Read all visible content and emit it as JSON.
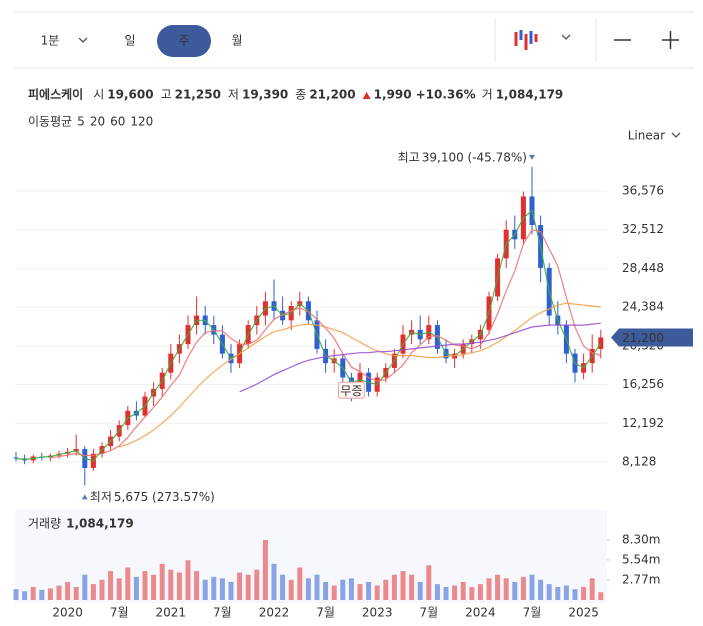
{
  "toolbar": {
    "intervals": [
      "1분",
      "일",
      "주",
      "월"
    ],
    "selected": 2
  },
  "info": {
    "name": "피에스케이",
    "fields": [
      {
        "label": "시",
        "value": "19,600"
      },
      {
        "label": "고",
        "value": "21,250"
      },
      {
        "label": "저",
        "value": "19,390"
      },
      {
        "label": "종",
        "value": "21,200"
      }
    ],
    "change": "1,990",
    "change_pct": "+10.36%",
    "volume_label": "거",
    "volume": "1,084,179"
  },
  "ma_legend": {
    "label": "이동평균"
  },
  "scale_button": "Linear",
  "chart_data": [
    {
      "type": "candlestick",
      "categories": [
        null,
        null,
        null,
        null,
        null,
        null,
        "2020",
        null,
        null,
        null,
        null,
        null,
        "7월",
        null,
        null,
        null,
        null,
        null,
        "2021",
        null,
        null,
        null,
        null,
        null,
        "7월",
        null,
        null,
        null,
        null,
        null,
        "2022",
        null,
        null,
        null,
        null,
        null,
        "7월",
        null,
        null,
        null,
        null,
        null,
        "2023",
        null,
        null,
        null,
        null,
        null,
        "7월",
        null,
        null,
        null,
        null,
        null,
        "2024",
        null,
        null,
        null,
        null,
        null,
        "7월",
        null,
        null,
        null,
        null,
        null,
        "2025",
        null,
        null
      ],
      "open": [
        8600,
        8500,
        8300,
        8700,
        8600,
        8800,
        9000,
        9200,
        9500,
        7500,
        9000,
        9800,
        10800,
        12000,
        13500,
        13000,
        15000,
        15800,
        17500,
        19500,
        20500,
        22500,
        23500,
        22500,
        21500,
        19500,
        18500,
        20500,
        22500,
        23500,
        25000,
        24000,
        23000,
        24500,
        25000,
        23000,
        20000,
        18500,
        19000,
        17000,
        16000,
        17500,
        15500,
        17000,
        18000,
        19500,
        21500,
        22000,
        21000,
        22500,
        20000,
        19000,
        19500,
        20500,
        21000,
        22000,
        25500,
        29500,
        32500,
        31500,
        36000,
        33000,
        28500,
        23500,
        22500,
        19500,
        17500,
        18500,
        20000
      ],
      "high": [
        9200,
        8900,
        8900,
        9100,
        9000,
        9300,
        9600,
        11000,
        9800,
        9500,
        10200,
        11500,
        12500,
        14000,
        14500,
        15500,
        16500,
        18000,
        20500,
        21500,
        23500,
        25500,
        24500,
        23500,
        22500,
        20500,
        21000,
        23000,
        24500,
        26000,
        27300,
        25500,
        25000,
        26000,
        25500,
        24000,
        21000,
        20000,
        19500,
        17500,
        18500,
        18000,
        17500,
        18500,
        20000,
        22500,
        23000,
        23500,
        23500,
        23000,
        21000,
        20000,
        21000,
        21500,
        22500,
        26000,
        30000,
        33500,
        34000,
        36500,
        39100,
        34000,
        29000,
        25000,
        23000,
        20000,
        19500,
        21500,
        22000
      ],
      "low": [
        8200,
        7900,
        8000,
        8300,
        8200,
        8500,
        8600,
        8800,
        5675,
        7200,
        8600,
        9400,
        10300,
        11500,
        12500,
        12800,
        14000,
        15000,
        16800,
        18500,
        20000,
        21500,
        21500,
        20500,
        19000,
        17500,
        18000,
        20000,
        21500,
        22500,
        23000,
        22500,
        22000,
        23500,
        22500,
        19500,
        17500,
        17500,
        16500,
        14500,
        15500,
        15000,
        15000,
        16500,
        17500,
        19000,
        20500,
        20500,
        20500,
        19500,
        18500,
        18000,
        19000,
        19500,
        20000,
        21500,
        25000,
        28500,
        30500,
        31000,
        32000,
        27000,
        22500,
        21500,
        18500,
        16500,
        16800,
        17500,
        19000
      ],
      "close": [
        8500,
        8300,
        8700,
        8600,
        8800,
        9000,
        9200,
        9500,
        7500,
        9000,
        9800,
        10800,
        12000,
        13500,
        13000,
        15000,
        15800,
        17500,
        19500,
        20500,
        22500,
        23500,
        22500,
        21500,
        19500,
        18500,
        20500,
        22500,
        23500,
        25000,
        24000,
        23000,
        24500,
        25000,
        23000,
        20000,
        18500,
        19000,
        17000,
        16000,
        17500,
        15500,
        17000,
        18000,
        19500,
        21500,
        22000,
        21000,
        22500,
        20000,
        19000,
        19500,
        20500,
        21000,
        22000,
        25500,
        29500,
        32500,
        31500,
        36000,
        33000,
        28500,
        23500,
        22500,
        19500,
        17500,
        18500,
        20000,
        21200
      ],
      "up_color": "#e0302f",
      "down_color": "#2f5fd0",
      "ylim": [
        4140,
        41400
      ],
      "yticks": [
        {
          "value": 8128,
          "label": "8,128"
        },
        {
          "value": 12192,
          "label": "12,192"
        },
        {
          "value": 16256,
          "label": "16,256"
        },
        {
          "value": 20320,
          "label": "20,320"
        },
        {
          "value": 24384,
          "label": "24,384"
        },
        {
          "value": 28448,
          "label": "28,448"
        },
        {
          "value": 32512,
          "label": "32,512"
        },
        {
          "value": 36576,
          "label": "36,576"
        }
      ],
      "grid": true,
      "series": [
        {
          "name": "5",
          "color": "#3fae3f",
          "values": [
            8500,
            8400,
            8500,
            8650,
            8700,
            8900,
            9100,
            9350,
            8500,
            8250,
            9400,
            10300,
            11400,
            12750,
            13250,
            14000,
            15400,
            16650,
            18500,
            20000,
            21500,
            23000,
            23000,
            22000,
            20500,
            19000,
            19500,
            21500,
            23000,
            24250,
            24500,
            23500,
            23750,
            24750,
            24000,
            21500,
            19250,
            18750,
            18000,
            16500,
            16750,
            16500,
            16250,
            17500,
            18750,
            20500,
            21750,
            21500,
            21750,
            21250,
            19500,
            19250,
            20000,
            20750,
            21500,
            23750,
            27500,
            31000,
            32000,
            33750,
            34500,
            30750,
            26000,
            23000,
            21000,
            18500,
            18000,
            19250,
            20600
          ]
        },
        {
          "name": "20",
          "color": "#f07070",
          "values": [
            null,
            null,
            null,
            null,
            8580,
            8680,
            8860,
            9020,
            8800,
            8840,
            9000,
            9320,
            9820,
            10720,
            11820,
            12860,
            13860,
            14960,
            16160,
            17260,
            19160,
            20700,
            21700,
            21900,
            21900,
            21100,
            20500,
            20500,
            20900,
            22000,
            23100,
            23600,
            24000,
            24300,
            23900,
            23100,
            22200,
            21100,
            19500,
            18100,
            17600,
            17000,
            16600,
            16800,
            17500,
            18300,
            19600,
            20400,
            21300,
            21400,
            20900,
            20400,
            20300,
            20000,
            20400,
            21700,
            23700,
            26100,
            28200,
            31000,
            32500,
            32300,
            30500,
            28700,
            25400,
            22300,
            20300,
            19600,
            19300
          ]
        },
        {
          "name": "60",
          "color": "#f5a04a",
          "values": [
            null,
            null,
            null,
            null,
            null,
            null,
            null,
            null,
            null,
            null,
            null,
            null,
            9700,
            10000,
            10400,
            10900,
            11500,
            12200,
            13000,
            13900,
            14900,
            15900,
            16800,
            17600,
            18300,
            18900,
            19500,
            20100,
            20700,
            21300,
            21800,
            22000,
            22300,
            22500,
            22600,
            22500,
            22300,
            22000,
            21700,
            21200,
            20700,
            20200,
            19800,
            19500,
            19300,
            19300,
            19300,
            19200,
            19100,
            19100,
            19200,
            19300,
            19400,
            19600,
            19800,
            20200,
            20700,
            21300,
            21900,
            22600,
            23300,
            23800,
            24200,
            24600,
            24800,
            24700,
            24600,
            24500,
            24400
          ]
        },
        {
          "name": "120",
          "color": "#9b4fd6",
          "values": [
            null,
            null,
            null,
            null,
            null,
            null,
            null,
            null,
            null,
            null,
            null,
            null,
            null,
            null,
            null,
            null,
            null,
            null,
            null,
            null,
            null,
            null,
            null,
            null,
            null,
            null,
            15500,
            15900,
            16300,
            16800,
            17300,
            17700,
            18100,
            18500,
            18800,
            19000,
            19200,
            19300,
            19400,
            19500,
            19600,
            19600,
            19700,
            19700,
            19800,
            19900,
            20000,
            20100,
            20200,
            20300,
            20400,
            20500,
            20500,
            20600,
            20700,
            20900,
            21100,
            21400,
            21700,
            22000,
            22300,
            22400,
            22500,
            22500,
            22500,
            22500,
            22500,
            22600,
            22700
          ]
        }
      ],
      "high_annotation": {
        "label": "최고",
        "value_label": "39,100 (-45.78%)"
      },
      "low_annotation": {
        "label": "최저",
        "value_label": "5,675 (273.57%)"
      },
      "events": [
        null,
        null,
        null,
        null,
        null,
        null,
        null,
        null,
        null,
        null,
        null,
        null,
        null,
        null,
        null,
        null,
        null,
        null,
        null,
        null,
        null,
        null,
        null,
        null,
        null,
        null,
        null,
        null,
        null,
        null,
        null,
        null,
        null,
        null,
        null,
        null,
        null,
        null,
        null,
        "무증",
        null,
        null,
        null,
        null,
        null,
        null,
        null,
        null,
        null,
        null,
        null,
        null,
        null,
        null,
        null,
        null,
        null,
        null,
        null,
        null,
        null,
        null,
        null,
        null,
        null,
        null,
        null,
        null,
        null
      ],
      "last_label": "21,200"
    },
    {
      "type": "bar",
      "title": "거래량",
      "value_label": "1,084,179",
      "values": [
        1500000,
        1200000,
        1800000,
        1400000,
        1600000,
        2000000,
        2500000,
        1800000,
        3500000,
        2200000,
        2800000,
        4000000,
        3000000,
        4500000,
        3200000,
        4000000,
        3500000,
        5000000,
        4200000,
        3800000,
        5500000,
        4000000,
        2800000,
        3200000,
        3000000,
        2500000,
        3800000,
        3500000,
        4200000,
        8300000,
        5000000,
        3500000,
        2800000,
        4500000,
        3000000,
        3500000,
        2500000,
        2000000,
        2800000,
        3000000,
        2200000,
        2500000,
        2000000,
        2800000,
        3500000,
        4000000,
        3500000,
        2500000,
        4800000,
        2200000,
        1800000,
        2000000,
        2500000,
        1800000,
        2200000,
        3000000,
        3500000,
        3000000,
        2500000,
        3200000,
        3500000,
        2800000,
        2200000,
        1800000,
        2000000,
        1500000,
        1800000,
        3000000,
        1084179
      ],
      "ylim": [
        0,
        11760000
      ],
      "yticks": [
        {
          "value": 2770000,
          "label": "2.77m"
        },
        {
          "value": 5540000,
          "label": "5.54m"
        },
        {
          "value": 8300000,
          "label": "8.30m"
        }
      ]
    }
  ]
}
